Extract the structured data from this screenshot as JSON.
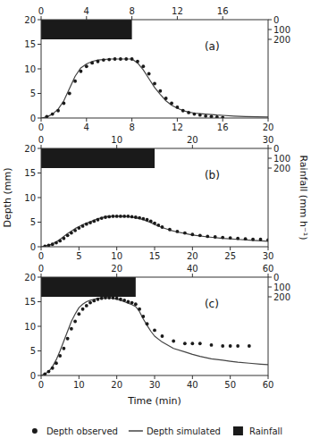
{
  "chart_data": [
    {
      "type": "line",
      "annotations": [
        "(a)"
      ],
      "xlim": [
        0,
        20
      ],
      "xticks": [
        0,
        4,
        8,
        12,
        16,
        20
      ],
      "x2lim": [
        0,
        20
      ],
      "x2ticks": [
        0,
        4,
        8,
        12,
        16
      ],
      "ylim": [
        0,
        20
      ],
      "yticks": [
        0,
        5,
        10,
        15,
        20
      ],
      "y2lim": [
        1000,
        0
      ],
      "y2ticks": [
        0,
        100,
        200
      ],
      "grid": false,
      "legend": "bottom",
      "series": [
        {
          "name": "Depth observed",
          "type": "scatter",
          "color": "#1a1a1a",
          "x": [
            0.5,
            1.0,
            1.5,
            2.0,
            2.5,
            3.0,
            3.5,
            4.0,
            4.5,
            5.0,
            5.5,
            6.0,
            6.5,
            7.0,
            7.5,
            8.0,
            8.5,
            9.0,
            9.5,
            10.0,
            10.5,
            11.0,
            11.5,
            12.0,
            12.5,
            13.0,
            13.5,
            14.0,
            14.5,
            15.0,
            15.5,
            16.0
          ],
          "values": [
            0.3,
            0.8,
            1.5,
            3.0,
            5.0,
            7.5,
            9.5,
            10.5,
            11.2,
            11.5,
            11.8,
            11.9,
            12.0,
            12.0,
            12.0,
            12.0,
            11.5,
            10.5,
            9.0,
            7.0,
            5.5,
            4.0,
            3.0,
            2.2,
            1.5,
            1.1,
            0.8,
            0.6,
            0.4,
            0.3,
            0.2,
            0.1
          ]
        },
        {
          "name": "Depth simulated",
          "type": "line",
          "color": "#444444",
          "x": [
            0,
            0.5,
            1.0,
            1.5,
            2.0,
            2.5,
            3.0,
            3.5,
            4.0,
            4.5,
            5.0,
            5.5,
            6.0,
            6.5,
            7.0,
            7.5,
            8.0,
            8.5,
            9.0,
            9.5,
            10.0,
            10.5,
            11.0,
            11.5,
            12.0,
            12.5,
            13.0,
            13.5,
            14.0,
            14.5,
            15.0,
            15.5,
            16.0,
            17.0,
            18.0,
            19.0,
            20.0
          ],
          "values": [
            0,
            0.2,
            0.8,
            1.8,
            3.5,
            6.0,
            8.5,
            10.2,
            11.0,
            11.5,
            11.8,
            11.9,
            12.0,
            12.0,
            12.0,
            12.0,
            12.0,
            11.2,
            9.8,
            8.0,
            6.2,
            4.8,
            3.5,
            2.6,
            2.0,
            1.5,
            1.2,
            1.0,
            0.9,
            0.8,
            0.7,
            0.6,
            0.55,
            0.4,
            0.3,
            0.25,
            0.2
          ]
        },
        {
          "name": "Rainfall",
          "type": "area",
          "color": "#1a1a1a",
          "x": [
            0,
            8
          ],
          "values": [
            20,
            20
          ],
          "base": [
            16,
            16
          ]
        }
      ]
    },
    {
      "type": "line",
      "annotations": [
        "(b)"
      ],
      "ylabel": "Depth (mm)",
      "y2label": "Rainfall (mm h⁻¹)",
      "xlim": [
        0,
        30
      ],
      "xticks": [
        0,
        5,
        10,
        15,
        20,
        25,
        30
      ],
      "x2lim": [
        0,
        30
      ],
      "x2ticks": [
        0,
        10,
        20,
        30
      ],
      "ylim": [
        0,
        20
      ],
      "yticks": [
        0,
        5,
        10,
        15,
        20
      ],
      "y2lim": [
        1000,
        0
      ],
      "y2ticks": [
        0,
        100,
        200
      ],
      "grid": false,
      "series": [
        {
          "name": "Depth observed",
          "type": "scatter",
          "color": "#1a1a1a",
          "x": [
            0.5,
            1.0,
            1.5,
            2.0,
            2.5,
            3.0,
            3.5,
            4.0,
            4.5,
            5.0,
            5.5,
            6.0,
            6.5,
            7.0,
            7.5,
            8.0,
            8.5,
            9.0,
            9.5,
            10.0,
            10.5,
            11.0,
            11.5,
            12.0,
            12.5,
            13.0,
            13.5,
            14.0,
            14.5,
            15.0,
            15.5,
            16.0,
            17.0,
            18.0,
            19.0,
            20.0,
            21.0,
            22.0,
            23.0,
            24.0,
            25.0,
            26.0,
            27.0,
            28.0,
            29.0,
            30.0
          ],
          "values": [
            0.1,
            0.3,
            0.5,
            0.8,
            1.2,
            1.7,
            2.3,
            2.8,
            3.3,
            3.8,
            4.2,
            4.6,
            4.9,
            5.2,
            5.5,
            5.8,
            6.0,
            6.1,
            6.2,
            6.2,
            6.2,
            6.2,
            6.2,
            6.1,
            6.0,
            5.9,
            5.7,
            5.5,
            5.2,
            4.8,
            4.4,
            4.0,
            3.5,
            3.1,
            2.8,
            2.5,
            2.3,
            2.1,
            2.0,
            1.9,
            1.8,
            1.7,
            1.6,
            1.5,
            1.5,
            1.4
          ]
        },
        {
          "name": "Depth simulated",
          "type": "line",
          "color": "#444444",
          "x": [
            0,
            0.5,
            1.0,
            1.5,
            2.0,
            2.5,
            3.0,
            3.5,
            4.0,
            4.5,
            5.0,
            5.5,
            6.0,
            6.5,
            7.0,
            7.5,
            8.0,
            8.5,
            9.0,
            9.5,
            10.0,
            10.5,
            11.0,
            11.5,
            12.0,
            12.5,
            13.0,
            13.5,
            14.0,
            14.5,
            15.0,
            16.0,
            17.0,
            18.0,
            19.0,
            20.0,
            22.0,
            24.0,
            26.0,
            28.0,
            30.0
          ],
          "values": [
            0,
            0.1,
            0.3,
            0.6,
            1.0,
            1.5,
            2.1,
            2.7,
            3.2,
            3.7,
            4.1,
            4.5,
            4.8,
            5.1,
            5.4,
            5.7,
            5.9,
            6.1,
            6.2,
            6.2,
            6.2,
            6.2,
            6.2,
            6.1,
            6.0,
            5.9,
            5.7,
            5.5,
            5.2,
            4.9,
            4.5,
            3.9,
            3.4,
            3.0,
            2.7,
            2.4,
            2.0,
            1.7,
            1.5,
            1.3,
            1.1
          ]
        },
        {
          "name": "Rainfall",
          "type": "area",
          "color": "#1a1a1a",
          "x": [
            0,
            15
          ],
          "values": [
            20,
            20
          ],
          "base": [
            16,
            16
          ]
        }
      ]
    },
    {
      "type": "line",
      "annotations": [
        "(c)"
      ],
      "xlabel": "Time (min)",
      "xlim": [
        0,
        60
      ],
      "xticks": [
        0,
        10,
        20,
        30,
        40,
        50,
        60
      ],
      "x2lim": [
        0,
        60
      ],
      "x2ticks": [
        0,
        20,
        40,
        60
      ],
      "ylim": [
        0,
        20
      ],
      "yticks": [
        0,
        5,
        10,
        15,
        20
      ],
      "y2lim": [
        1000,
        0
      ],
      "y2ticks": [
        0,
        100,
        200
      ],
      "grid": false,
      "series": [
        {
          "name": "Depth observed",
          "type": "scatter",
          "color": "#1a1a1a",
          "x": [
            1,
            2,
            3,
            4,
            5,
            6,
            7,
            8,
            9,
            10,
            11,
            12,
            13,
            14,
            15,
            16,
            17,
            18,
            19,
            20,
            21,
            22,
            23,
            24,
            25,
            26,
            27,
            28,
            30,
            32,
            35,
            38,
            40,
            42,
            45,
            48,
            50,
            52,
            55
          ],
          "values": [
            0.3,
            0.8,
            1.5,
            2.5,
            4.0,
            5.5,
            7.5,
            9.5,
            11.0,
            12.5,
            13.5,
            14.2,
            14.8,
            15.2,
            15.5,
            15.7,
            15.8,
            15.8,
            15.8,
            15.7,
            15.5,
            15.3,
            15.0,
            14.8,
            14.5,
            13.5,
            12.0,
            10.5,
            9.2,
            8.0,
            7.0,
            6.5,
            6.5,
            6.5,
            6.2,
            6.0,
            6.0,
            6.0,
            6.0
          ]
        },
        {
          "name": "Depth simulated",
          "type": "line",
          "color": "#444444",
          "x": [
            0,
            1,
            2,
            3,
            4,
            5,
            6,
            7,
            8,
            9,
            10,
            11,
            12,
            13,
            14,
            15,
            16,
            17,
            18,
            19,
            20,
            21,
            22,
            23,
            24,
            25,
            26,
            27,
            28,
            29,
            30,
            32,
            35,
            38,
            40,
            42,
            45,
            48,
            50,
            52,
            55,
            58,
            60
          ],
          "values": [
            0,
            0.3,
            0.8,
            1.8,
            3.2,
            5.0,
            7.0,
            9.0,
            11.0,
            12.5,
            13.8,
            14.5,
            15.0,
            15.3,
            15.5,
            15.7,
            15.8,
            15.8,
            15.8,
            15.7,
            15.5,
            15.3,
            15.0,
            14.7,
            14.4,
            14.0,
            13.0,
            11.5,
            10.2,
            9.0,
            8.0,
            6.8,
            5.5,
            4.8,
            4.3,
            3.9,
            3.4,
            3.1,
            2.9,
            2.7,
            2.5,
            2.3,
            2.2
          ]
        },
        {
          "name": "Rainfall",
          "type": "area",
          "color": "#1a1a1a",
          "x": [
            0,
            25
          ],
          "values": [
            20,
            20
          ],
          "base": [
            16,
            16
          ]
        }
      ]
    }
  ]
}
